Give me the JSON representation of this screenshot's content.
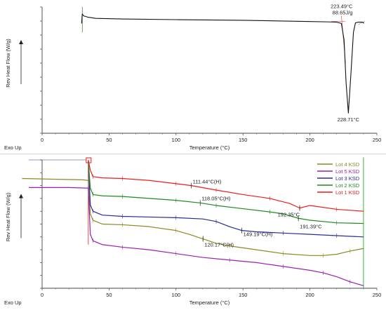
{
  "chart_data": [
    {
      "type": "line",
      "title": "",
      "xlabel": "Temperature (°C)",
      "ylabel": "Rev Heat Flow (W/g)",
      "corner_label": "Exo Up",
      "xlim": [
        0,
        250
      ],
      "x_ticks": [
        0,
        50,
        100,
        150,
        200,
        250
      ],
      "ylim": [
        0,
        1
      ],
      "y_ticks_labeled": false,
      "grid": false,
      "legend": null,
      "series": [
        {
          "color": "#111111",
          "x": [
            29.5,
            30,
            31,
            34,
            40,
            60,
            100,
            150,
            200,
            215,
            220,
            223.5,
            225.5,
            227,
            228.71,
            230.5,
            232.5,
            234,
            236,
            239,
            240.5
          ],
          "y": [
            0.87,
            0.945,
            0.93,
            0.92,
            0.91,
            0.905,
            0.9,
            0.895,
            0.885,
            0.882,
            0.88,
            0.87,
            0.74,
            0.4,
            0.16,
            0.45,
            0.8,
            0.875,
            0.88,
            0.88,
            0.872
          ]
        }
      ],
      "annotations": [
        {
          "text": "223.49°C",
          "x": 223.5,
          "y": 0.88
        },
        {
          "text": "88.65J/g",
          "x": 223.5,
          "y": 0.88
        },
        {
          "text": "228.71°C",
          "x": 228.71,
          "y": 0.16
        }
      ]
    },
    {
      "type": "line",
      "title": "",
      "xlabel": "Temperature (°C)",
      "ylabel": "Rev Heat Flow (W/g)",
      "corner_label": "Exo Up",
      "xlim": [
        0,
        250
      ],
      "x_ticks": [
        0,
        50,
        100,
        150,
        200,
        250
      ],
      "ylim": [
        0,
        1
      ],
      "y_ticks_labeled": false,
      "grid": false,
      "legend": "top-right",
      "series": [
        {
          "name": "Lot 4 KSD",
          "color": "#8a8a1e",
          "x": [
            -15,
            30,
            34.5,
            36,
            38,
            45,
            60,
            80,
            100,
            110,
            120,
            130,
            140,
            160,
            180,
            200,
            210,
            220,
            230,
            240
          ],
          "y": [
            0.855,
            0.845,
            0.84,
            0.58,
            0.53,
            0.5,
            0.495,
            0.48,
            0.45,
            0.42,
            0.385,
            0.35,
            0.33,
            0.3,
            0.27,
            0.255,
            0.255,
            0.265,
            0.29,
            0.31
          ]
        },
        {
          "name": "Lot 5 KSD",
          "color": "#9a1fb0",
          "x": [
            -10,
            20,
            34.5,
            36,
            38,
            45,
            60,
            80,
            100,
            120,
            140,
            160,
            180,
            200,
            210,
            220,
            230,
            240
          ],
          "y": [
            0.785,
            0.785,
            0.78,
            0.42,
            0.37,
            0.34,
            0.32,
            0.3,
            0.27,
            0.24,
            0.22,
            0.2,
            0.17,
            0.14,
            0.12,
            0.09,
            0.05,
            0.02
          ]
        },
        {
          "name": "Lot 3 KSD",
          "color": "#2a2a9a",
          "x": [
            34.5,
            36,
            38,
            45,
            60,
            80,
            100,
            120,
            130,
            140,
            149.19,
            160,
            180,
            200,
            220,
            240
          ],
          "y": [
            0.99,
            0.65,
            0.6,
            0.57,
            0.56,
            0.555,
            0.55,
            0.54,
            0.52,
            0.48,
            0.45,
            0.44,
            0.43,
            0.42,
            0.41,
            0.4
          ]
        },
        {
          "name": "Lot 2 KSD",
          "color": "#1f8a1f",
          "x": [
            34.5,
            36,
            38,
            45,
            60,
            80,
            100,
            118.05,
            130,
            150,
            170,
            180,
            191.39,
            200,
            220,
            240
          ],
          "y": [
            0.995,
            0.78,
            0.73,
            0.72,
            0.715,
            0.7,
            0.685,
            0.665,
            0.645,
            0.62,
            0.595,
            0.58,
            0.545,
            0.53,
            0.51,
            0.505
          ]
        },
        {
          "name": "Lot 1 KSD",
          "color": "#ee1c1c",
          "x": [
            34.5,
            36,
            38,
            45,
            60,
            80,
            100,
            111.44,
            130,
            150,
            170,
            185,
            192.35,
            200,
            220,
            240
          ],
          "y": [
            1.0,
            0.92,
            0.87,
            0.86,
            0.855,
            0.84,
            0.815,
            0.8,
            0.765,
            0.73,
            0.7,
            0.66,
            0.625,
            0.645,
            0.615,
            0.6
          ]
        }
      ],
      "annotations": [
        {
          "text": "111.44°C(H)",
          "x": 111.44,
          "y": 0.8
        },
        {
          "text": "118.05°C(H)",
          "x": 118.05,
          "y": 0.665
        },
        {
          "text": "192.35°C",
          "x": 192.35,
          "y": 0.625
        },
        {
          "text": "149.19°C(H)",
          "x": 149.19,
          "y": 0.45
        },
        {
          "text": "191.39°C",
          "x": 191.39,
          "y": 0.545
        },
        {
          "text": "120.17°C(H)",
          "x": 120.17,
          "y": 0.385
        }
      ]
    }
  ]
}
